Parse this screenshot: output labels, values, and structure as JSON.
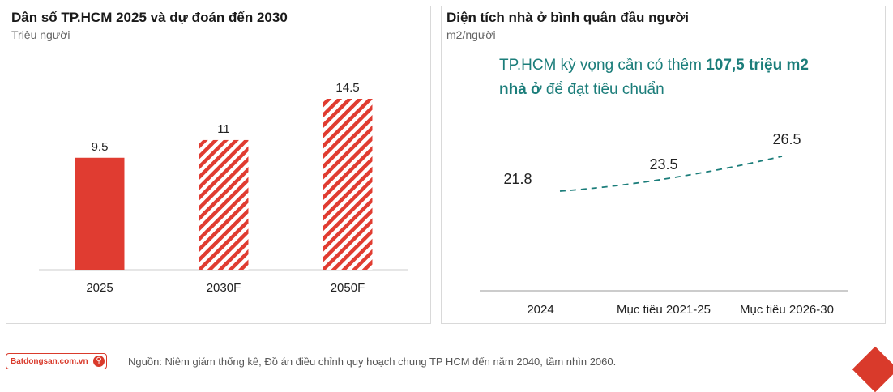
{
  "left_panel": {
    "title": "Dân số TP.HCM 2025 và dự đoán đến 2030",
    "unit": "Triệu người"
  },
  "right_panel": {
    "title": "Diện tích nhà ở bình quân đầu người",
    "unit": "m2/người",
    "callout_line1_prefix": "TP.HCM kỳ vọng cần có thêm ",
    "callout_line1_bold": "107,5 triệu m2",
    "callout_line2_bold": "nhà ở",
    "callout_line2_rest": " để đạt tiêu chuẩn"
  },
  "footer": {
    "logo_text": "Batdongsan.com.vn",
    "source": "Nguồn: Niêm giám thống kê, Đồ án điều chỉnh quy hoạch chung TP HCM đến năm 2040, tầm nhìn 2060."
  },
  "colors": {
    "accent": "#e03c31",
    "line": "#1b7d7a",
    "callout": "#1b7d7a"
  },
  "icons": {
    "logo": "search-icon"
  },
  "chart_data": [
    {
      "type": "bar",
      "categories": [
        "2025",
        "2030F",
        "2050F"
      ],
      "values": [
        9.5,
        11,
        14.5
      ],
      "styles": [
        "solid",
        "hatched",
        "hatched"
      ],
      "ylim": [
        0,
        14.5
      ],
      "grid": false
    },
    {
      "type": "line",
      "categories": [
        "2024",
        "Mục tiêu 2021-25",
        "Mục tiêu 2026-30"
      ],
      "values": [
        21.8,
        23.5,
        26.5
      ],
      "line_style": "dashed",
      "grid": false
    }
  ]
}
